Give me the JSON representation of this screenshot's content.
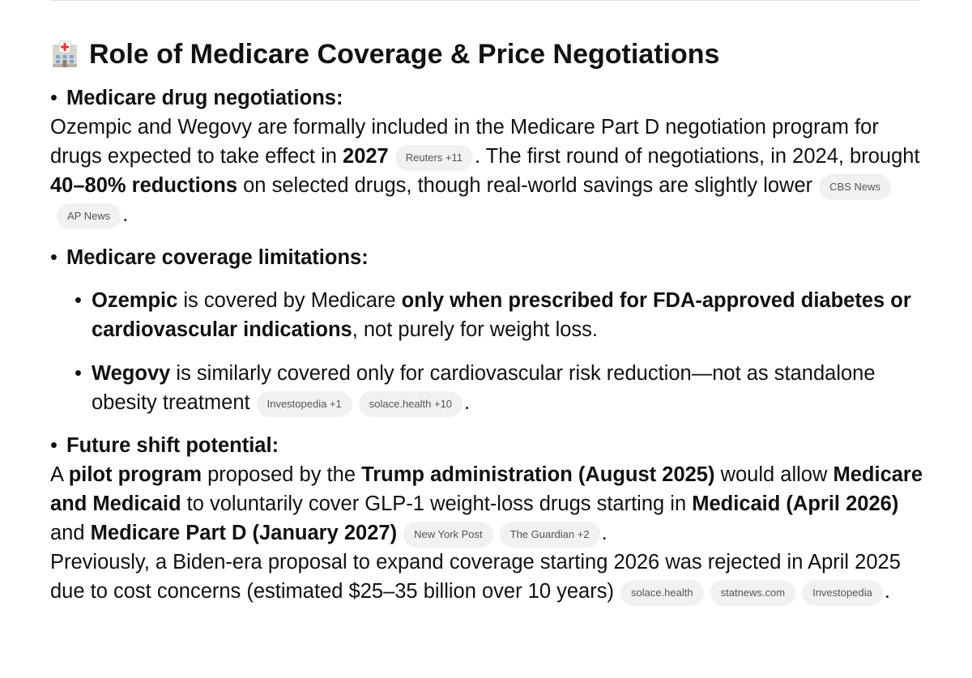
{
  "title": "Role of Medicare Coverage & Price Negotiations",
  "items": [
    {
      "label": "Medicare drug negotiations:",
      "body": [
        [
          {
            "text": "Ozempic and Wegovy are formally included in the Medicare Part D negotiation program for drugs expected to take effect in "
          },
          {
            "bold": "2027"
          },
          {
            "source": "Reuters +11"
          },
          {
            "text": ". The first round of negotiations, in 2024, brought "
          },
          {
            "bold": "40–80% reductions"
          },
          {
            "text": " on selected drugs, though real-world savings are slightly lower"
          },
          {
            "source": "CBS News"
          },
          {
            "source": "AP News"
          },
          {
            "text": "."
          }
        ]
      ]
    },
    {
      "label": "Medicare coverage limitations:",
      "subitems": [
        [
          {
            "bold": "Ozempic"
          },
          {
            "text": " is covered by Medicare "
          },
          {
            "bold": "only when prescribed for FDA-approved diabetes or cardiovascular indications"
          },
          {
            "text": ", not purely for weight loss."
          }
        ],
        [
          {
            "bold": "Wegovy"
          },
          {
            "text": " is similarly covered only for cardiovascular risk reduction—not as standalone obesity treatment"
          },
          {
            "source": "Investopedia +1"
          },
          {
            "source": "solace.health +10"
          },
          {
            "text": "."
          }
        ]
      ]
    },
    {
      "label": "Future shift potential:",
      "body": [
        [
          {
            "text": "A "
          },
          {
            "bold": "pilot program"
          },
          {
            "text": " proposed by the "
          },
          {
            "bold": "Trump administration (August 2025)"
          },
          {
            "text": " would allow "
          },
          {
            "bold": "Medicare and Medicaid"
          },
          {
            "text": " to voluntarily cover GLP-1 weight-loss drugs starting in "
          },
          {
            "bold": "Medicaid (April 2026)"
          },
          {
            "text": " and "
          },
          {
            "bold": "Medicare Part D (January 2027)"
          },
          {
            "source": "New York Post"
          },
          {
            "source": "The Guardian +2"
          },
          {
            "text": "."
          }
        ],
        [
          {
            "text": "Previously, a Biden-era proposal to expand coverage starting 2026 was rejected in April 2025 due to cost concerns (estimated $25–35 billion over 10 years)"
          },
          {
            "source": "solace.health"
          },
          {
            "source": "statnews.com"
          },
          {
            "source": "Investopedia"
          },
          {
            "text": "."
          }
        ]
      ]
    }
  ]
}
